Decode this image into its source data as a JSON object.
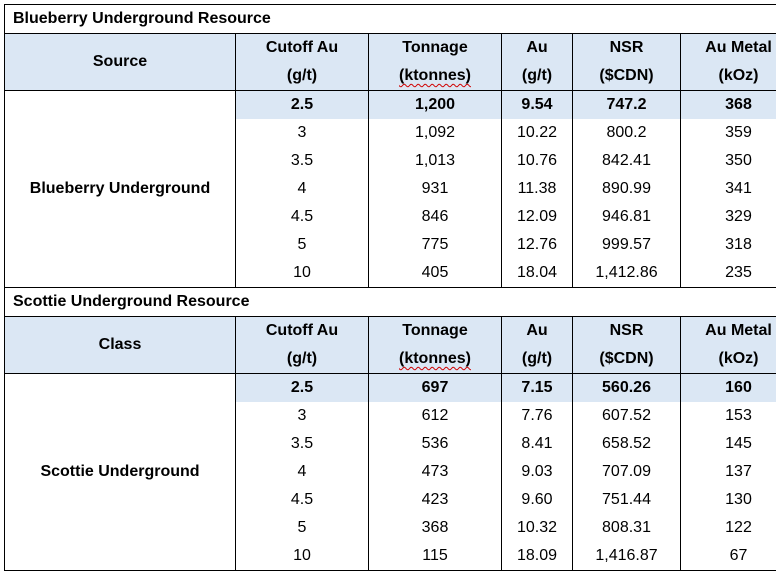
{
  "sections": [
    {
      "title": "Blueberry Underground Resource",
      "header": {
        "first_col": "Source",
        "cols": [
          {
            "top": "Cutoff Au",
            "bottom": "(g/t)"
          },
          {
            "top": "Tonnage",
            "bottom": "(ktonnes)"
          },
          {
            "top": "Au",
            "bottom": "(g/t)"
          },
          {
            "top": "NSR",
            "bottom": "($CDN)"
          },
          {
            "top": "Au Metal",
            "bottom": "(kOz)"
          }
        ]
      },
      "row_label": "Blueberry Underground",
      "rows": [
        [
          "2.5",
          "1,200",
          "9.54",
          "747.2",
          "368"
        ],
        [
          "3",
          "1,092",
          "10.22",
          "800.2",
          "359"
        ],
        [
          "3.5",
          "1,013",
          "10.76",
          "842.41",
          "350"
        ],
        [
          "4",
          "931",
          "11.38",
          "890.99",
          "341"
        ],
        [
          "4.5",
          "846",
          "12.09",
          "946.81",
          "329"
        ],
        [
          "5",
          "775",
          "12.76",
          "999.57",
          "318"
        ],
        [
          "10",
          "405",
          "18.04",
          "1,412.86",
          "235"
        ]
      ]
    },
    {
      "title": "Scottie Underground Resource",
      "header": {
        "first_col": "Class",
        "cols": [
          {
            "top": "Cutoff Au",
            "bottom": "(g/t)"
          },
          {
            "top": "Tonnage",
            "bottom": "(ktonnes)"
          },
          {
            "top": "Au",
            "bottom": "(g/t)"
          },
          {
            "top": "NSR",
            "bottom": "($CDN)"
          },
          {
            "top": "Au Metal",
            "bottom": "(kOz)"
          }
        ]
      },
      "row_label": "Scottie Underground",
      "rows": [
        [
          "2.5",
          "697",
          "7.15",
          "560.26",
          "160"
        ],
        [
          "3",
          "612",
          "7.76",
          "607.52",
          "153"
        ],
        [
          "3.5",
          "536",
          "8.41",
          "658.52",
          "145"
        ],
        [
          "4",
          "473",
          "9.03",
          "707.09",
          "137"
        ],
        [
          "4.5",
          "423",
          "9.60",
          "751.44",
          "130"
        ],
        [
          "5",
          "368",
          "10.32",
          "808.31",
          "122"
        ],
        [
          "10",
          "115",
          "18.09",
          "1,416.87",
          "67"
        ]
      ]
    }
  ]
}
